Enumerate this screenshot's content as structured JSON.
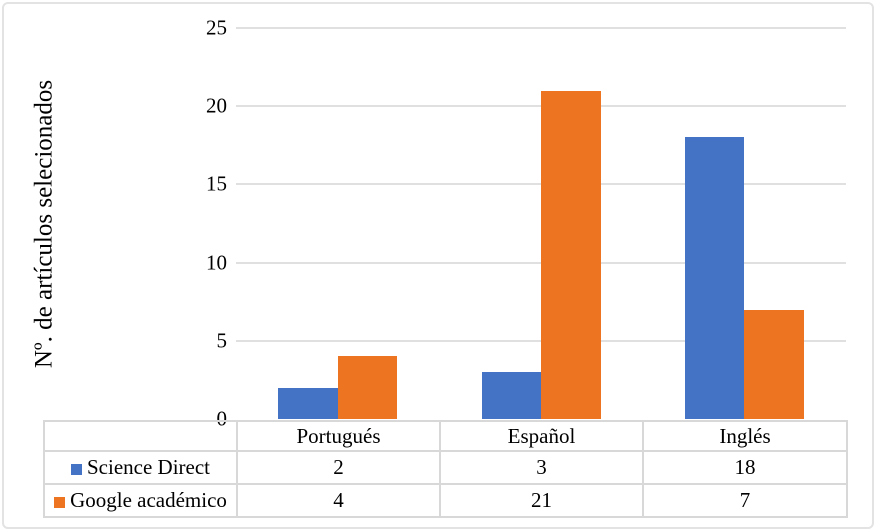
{
  "chart_data": {
    "type": "bar",
    "title": "",
    "categories": [
      "Portugués",
      "Español",
      "Inglés"
    ],
    "series": [
      {
        "name": "Science Direct",
        "color": "#4472C4",
        "values": [
          2,
          3,
          18
        ]
      },
      {
        "name": "Google académico",
        "color": "#ED7420",
        "values": [
          4,
          21,
          7
        ]
      }
    ],
    "ylabel": "Nº. de artículos selecionados",
    "xlabel": "",
    "ylim": [
      0,
      25
    ],
    "yticks": [
      0,
      5,
      10,
      15,
      20,
      25
    ],
    "grid": true,
    "legend_position": "bottom-table"
  },
  "colors": {
    "series_blue": "#4472C4",
    "series_orange": "#ED7420",
    "gridline": "#E0E0E0",
    "table_border": "#D8D8D8",
    "frame_border": "#E3E3E3",
    "text": "#000000"
  }
}
